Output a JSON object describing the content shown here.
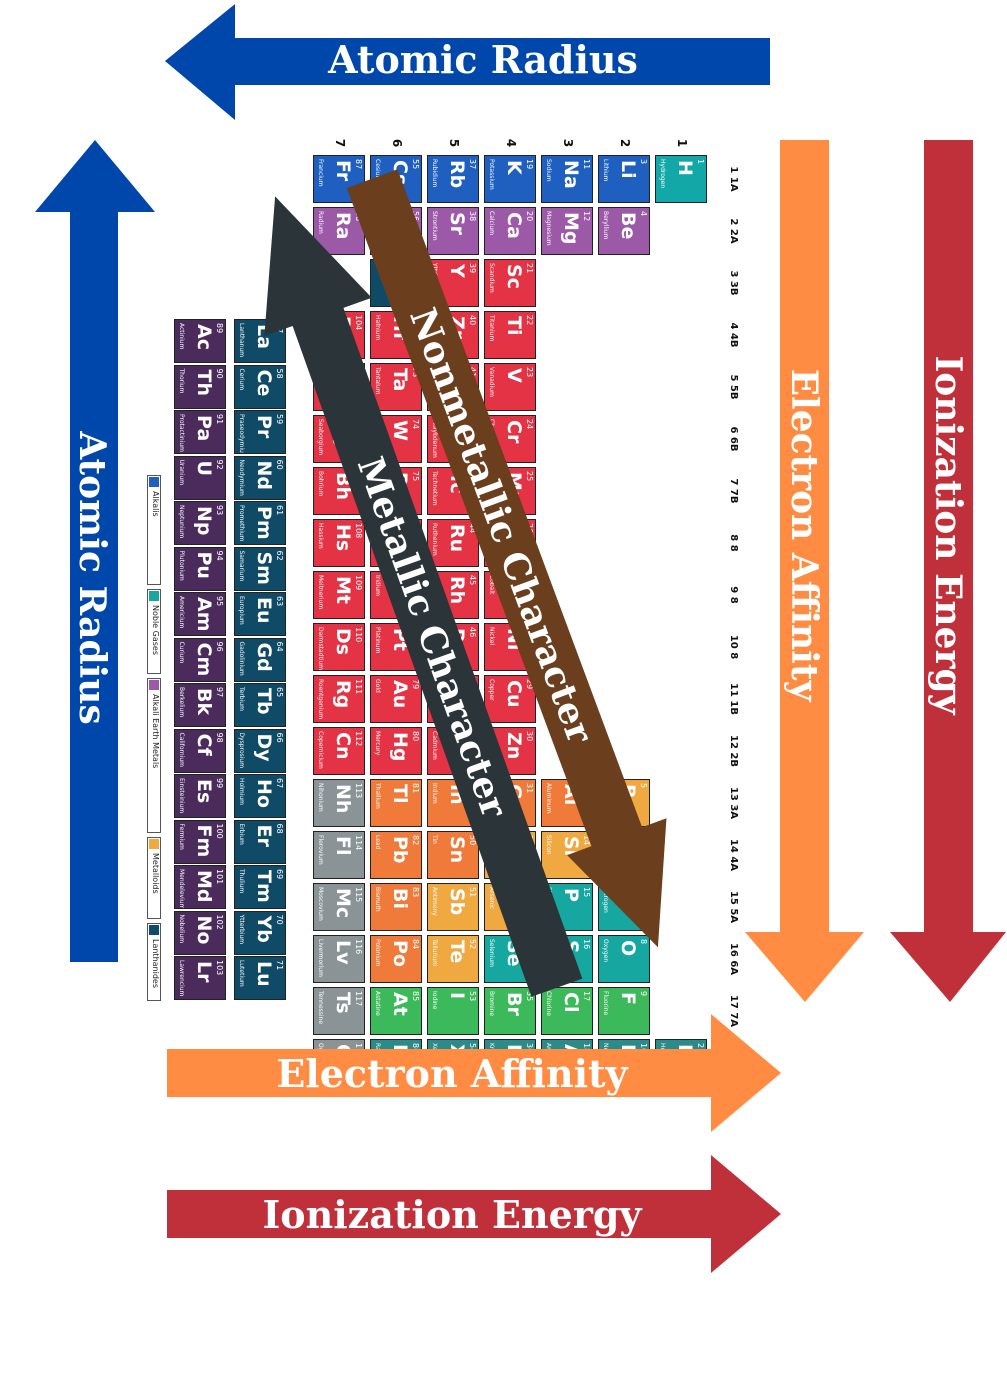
{
  "labels": {
    "atomic_radius_top": "Atomic Radius",
    "atomic_radius_left": "Atomic Radius",
    "electron_affinity_right": "Electron Affinity",
    "ionization_energy_right": "Ionization Energy",
    "electron_affinity_bottom": "Electron Affinity",
    "ionization_energy_bottom": "Ionization Energy",
    "nonmetallic_character": "Nonmetallic Character",
    "metallic_character": "Metallic Character"
  },
  "colors": {
    "atomic_radius": "#0047AB",
    "electron_affinity": "#FF8C42",
    "ionization_energy": "#C0303A",
    "nonmetallic": "#6B3E1E",
    "metallic": "#2B3438"
  },
  "table": {
    "groups": [
      "1 1A",
      "2 2A",
      "3 3B",
      "4 4B",
      "5 5B",
      "6 6B",
      "7 7B",
      "8 8",
      "9 8",
      "10 8",
      "11 1B",
      "12 2B",
      "13 3A",
      "14 4A",
      "15 5A",
      "16 6A",
      "17 7A",
      "18 8A"
    ],
    "periods": [
      "1",
      "2",
      "3",
      "4",
      "5",
      "6",
      "7"
    ],
    "lanthanide_marker": "*",
    "legend": [
      "Alkalis",
      "Noble Gases",
      "Alkali Earth Metals",
      "Metalloids",
      "Lanthanides"
    ],
    "cat_colors": {
      "alkali": "#1f5fc0",
      "alkaline": "#9b59a8",
      "transition": "#e33345",
      "post": "#f07a3a",
      "metalloid": "#f0a840",
      "nonmetal": "#16a7a0",
      "halogen": "#3cb95a",
      "noble": "#2a8c8a",
      "hydrogen": "#13a8a8",
      "unknown": "#8a9496",
      "lanth": "#0f4a66",
      "actin": "#4a2b5c"
    },
    "elements": [
      {
        "n": "1",
        "s": "H",
        "name": "Hydrogen",
        "g": 1,
        "p": 1,
        "c": "hydrogen"
      },
      {
        "n": "2",
        "s": "He",
        "name": "Helium",
        "g": 18,
        "p": 1,
        "c": "noble"
      },
      {
        "n": "3",
        "s": "Li",
        "name": "Lithium",
        "g": 1,
        "p": 2,
        "c": "alkali"
      },
      {
        "n": "4",
        "s": "Be",
        "name": "Beryllium",
        "g": 2,
        "p": 2,
        "c": "alkaline"
      },
      {
        "n": "5",
        "s": "B",
        "name": "Boron",
        "g": 13,
        "p": 2,
        "c": "metalloid"
      },
      {
        "n": "6",
        "s": "C",
        "name": "Carbon",
        "g": 14,
        "p": 2,
        "c": "nonmetal"
      },
      {
        "n": "7",
        "s": "N",
        "name": "Nitrogen",
        "g": 15,
        "p": 2,
        "c": "nonmetal"
      },
      {
        "n": "8",
        "s": "O",
        "name": "Oxygen",
        "g": 16,
        "p": 2,
        "c": "nonmetal"
      },
      {
        "n": "9",
        "s": "F",
        "name": "Fluorine",
        "g": 17,
        "p": 2,
        "c": "halogen"
      },
      {
        "n": "10",
        "s": "Ne",
        "name": "Neon",
        "g": 18,
        "p": 2,
        "c": "noble"
      },
      {
        "n": "11",
        "s": "Na",
        "name": "Sodium",
        "g": 1,
        "p": 3,
        "c": "alkali"
      },
      {
        "n": "12",
        "s": "Mg",
        "name": "Magnesium",
        "g": 2,
        "p": 3,
        "c": "alkaline"
      },
      {
        "n": "13",
        "s": "Al",
        "name": "Aluminum",
        "g": 13,
        "p": 3,
        "c": "post"
      },
      {
        "n": "14",
        "s": "Si",
        "name": "Silicon",
        "g": 14,
        "p": 3,
        "c": "metalloid"
      },
      {
        "n": "15",
        "s": "P",
        "name": "Phosphorus",
        "g": 15,
        "p": 3,
        "c": "nonmetal"
      },
      {
        "n": "16",
        "s": "S",
        "name": "Sulfur",
        "g": 16,
        "p": 3,
        "c": "nonmetal"
      },
      {
        "n": "17",
        "s": "Cl",
        "name": "Chlorine",
        "g": 17,
        "p": 3,
        "c": "halogen"
      },
      {
        "n": "18",
        "s": "Ar",
        "name": "Argon",
        "g": 18,
        "p": 3,
        "c": "noble"
      },
      {
        "n": "19",
        "s": "K",
        "name": "Potassium",
        "g": 1,
        "p": 4,
        "c": "alkali"
      },
      {
        "n": "20",
        "s": "Ca",
        "name": "Calcium",
        "g": 2,
        "p": 4,
        "c": "alkaline"
      },
      {
        "n": "21",
        "s": "Sc",
        "name": "Scandium",
        "g": 3,
        "p": 4,
        "c": "transition"
      },
      {
        "n": "22",
        "s": "Ti",
        "name": "Titanium",
        "g": 4,
        "p": 4,
        "c": "transition"
      },
      {
        "n": "23",
        "s": "V",
        "name": "Vanadium",
        "g": 5,
        "p": 4,
        "c": "transition"
      },
      {
        "n": "24",
        "s": "Cr",
        "name": "Chromium",
        "g": 6,
        "p": 4,
        "c": "transition"
      },
      {
        "n": "25",
        "s": "Mn",
        "name": "Manganese",
        "g": 7,
        "p": 4,
        "c": "transition"
      },
      {
        "n": "26",
        "s": "Fe",
        "name": "Iron",
        "g": 8,
        "p": 4,
        "c": "transition"
      },
      {
        "n": "27",
        "s": "Co",
        "name": "Cobalt",
        "g": 9,
        "p": 4,
        "c": "transition"
      },
      {
        "n": "28",
        "s": "Ni",
        "name": "Nickel",
        "g": 10,
        "p": 4,
        "c": "transition"
      },
      {
        "n": "29",
        "s": "Cu",
        "name": "Copper",
        "g": 11,
        "p": 4,
        "c": "transition"
      },
      {
        "n": "30",
        "s": "Zn",
        "name": "Zinc",
        "g": 12,
        "p": 4,
        "c": "transition"
      },
      {
        "n": "31",
        "s": "Ga",
        "name": "Gallium",
        "g": 13,
        "p": 4,
        "c": "post"
      },
      {
        "n": "32",
        "s": "Ge",
        "name": "Germanium",
        "g": 14,
        "p": 4,
        "c": "metalloid"
      },
      {
        "n": "33",
        "s": "As",
        "name": "Arsenic",
        "g": 15,
        "p": 4,
        "c": "metalloid"
      },
      {
        "n": "34",
        "s": "Se",
        "name": "Selenium",
        "g": 16,
        "p": 4,
        "c": "nonmetal"
      },
      {
        "n": "35",
        "s": "Br",
        "name": "Bromine",
        "g": 17,
        "p": 4,
        "c": "halogen"
      },
      {
        "n": "36",
        "s": "Kr",
        "name": "Krypton",
        "g": 18,
        "p": 4,
        "c": "noble"
      },
      {
        "n": "37",
        "s": "Rb",
        "name": "Rubidium",
        "g": 1,
        "p": 5,
        "c": "alkali"
      },
      {
        "n": "38",
        "s": "Sr",
        "name": "Strontium",
        "g": 2,
        "p": 5,
        "c": "alkaline"
      },
      {
        "n": "39",
        "s": "Y",
        "name": "Yttrium",
        "g": 3,
        "p": 5,
        "c": "transition"
      },
      {
        "n": "40",
        "s": "Zr",
        "name": "Zirconium",
        "g": 4,
        "p": 5,
        "c": "transition"
      },
      {
        "n": "41",
        "s": "Nb",
        "name": "Niobium",
        "g": 5,
        "p": 5,
        "c": "transition"
      },
      {
        "n": "42",
        "s": "Mo",
        "name": "Molybdenum",
        "g": 6,
        "p": 5,
        "c": "transition"
      },
      {
        "n": "43",
        "s": "Tc",
        "name": "Technetium",
        "g": 7,
        "p": 5,
        "c": "transition"
      },
      {
        "n": "44",
        "s": "Ru",
        "name": "Ruthenium",
        "g": 8,
        "p": 5,
        "c": "transition"
      },
      {
        "n": "45",
        "s": "Rh",
        "name": "Rhodium",
        "g": 9,
        "p": 5,
        "c": "transition"
      },
      {
        "n": "46",
        "s": "Pd",
        "name": "Palladium",
        "g": 10,
        "p": 5,
        "c": "transition"
      },
      {
        "n": "47",
        "s": "Ag",
        "name": "Silver",
        "g": 11,
        "p": 5,
        "c": "transition"
      },
      {
        "n": "48",
        "s": "Cd",
        "name": "Cadmium",
        "g": 12,
        "p": 5,
        "c": "transition"
      },
      {
        "n": "49",
        "s": "In",
        "name": "Indium",
        "g": 13,
        "p": 5,
        "c": "post"
      },
      {
        "n": "50",
        "s": "Sn",
        "name": "Tin",
        "g": 14,
        "p": 5,
        "c": "post"
      },
      {
        "n": "51",
        "s": "Sb",
        "name": "Antimony",
        "g": 15,
        "p": 5,
        "c": "metalloid"
      },
      {
        "n": "52",
        "s": "Te",
        "name": "Tellurium",
        "g": 16,
        "p": 5,
        "c": "metalloid"
      },
      {
        "n": "53",
        "s": "I",
        "name": "Iodine",
        "g": 17,
        "p": 5,
        "c": "halogen"
      },
      {
        "n": "54",
        "s": "Xe",
        "name": "Xenon",
        "g": 18,
        "p": 5,
        "c": "noble"
      },
      {
        "n": "55",
        "s": "Cs",
        "name": "Cesium",
        "g": 1,
        "p": 6,
        "c": "alkali"
      },
      {
        "n": "56",
        "s": "Ba",
        "name": "Barium",
        "g": 2,
        "p": 6,
        "c": "alkaline"
      },
      {
        "n": "72",
        "s": "Hf",
        "name": "Hafnium",
        "g": 4,
        "p": 6,
        "c": "transition"
      },
      {
        "n": "73",
        "s": "Ta",
        "name": "Tantalum",
        "g": 5,
        "p": 6,
        "c": "transition"
      },
      {
        "n": "74",
        "s": "W",
        "name": "Tungsten",
        "g": 6,
        "p": 6,
        "c": "transition"
      },
      {
        "n": "75",
        "s": "Re",
        "name": "Rhenium",
        "g": 7,
        "p": 6,
        "c": "transition"
      },
      {
        "n": "76",
        "s": "Os",
        "name": "Osmium",
        "g": 8,
        "p": 6,
        "c": "transition"
      },
      {
        "n": "77",
        "s": "Ir",
        "name": "Iridium",
        "g": 9,
        "p": 6,
        "c": "transition"
      },
      {
        "n": "78",
        "s": "Pt",
        "name": "Platinum",
        "g": 10,
        "p": 6,
        "c": "transition"
      },
      {
        "n": "79",
        "s": "Au",
        "name": "Gold",
        "g": 11,
        "p": 6,
        "c": "transition"
      },
      {
        "n": "80",
        "s": "Hg",
        "name": "Mercury",
        "g": 12,
        "p": 6,
        "c": "transition"
      },
      {
        "n": "81",
        "s": "Tl",
        "name": "Thallium",
        "g": 13,
        "p": 6,
        "c": "post"
      },
      {
        "n": "82",
        "s": "Pb",
        "name": "Lead",
        "g": 14,
        "p": 6,
        "c": "post"
      },
      {
        "n": "83",
        "s": "Bi",
        "name": "Bismuth",
        "g": 15,
        "p": 6,
        "c": "post"
      },
      {
        "n": "84",
        "s": "Po",
        "name": "Polonium",
        "g": 16,
        "p": 6,
        "c": "post"
      },
      {
        "n": "85",
        "s": "At",
        "name": "Astatine",
        "g": 17,
        "p": 6,
        "c": "halogen"
      },
      {
        "n": "86",
        "s": "Rn",
        "name": "Radon",
        "g": 18,
        "p": 6,
        "c": "noble"
      },
      {
        "n": "87",
        "s": "Fr",
        "name": "Francium",
        "g": 1,
        "p": 7,
        "c": "alkali"
      },
      {
        "n": "88",
        "s": "Ra",
        "name": "Radium",
        "g": 2,
        "p": 7,
        "c": "alkaline"
      },
      {
        "n": "104",
        "s": "Rf",
        "name": "Rutherfordium",
        "g": 4,
        "p": 7,
        "c": "transition"
      },
      {
        "n": "105",
        "s": "Db",
        "name": "Dubnium",
        "g": 5,
        "p": 7,
        "c": "transition"
      },
      {
        "n": "106",
        "s": "Sg",
        "name": "Seaborgium",
        "g": 6,
        "p": 7,
        "c": "transition"
      },
      {
        "n": "107",
        "s": "Bh",
        "name": "Bohrium",
        "g": 7,
        "p": 7,
        "c": "transition"
      },
      {
        "n": "108",
        "s": "Hs",
        "name": "Hassium",
        "g": 8,
        "p": 7,
        "c": "transition"
      },
      {
        "n": "109",
        "s": "Mt",
        "name": "Meitnerium",
        "g": 9,
        "p": 7,
        "c": "transition"
      },
      {
        "n": "110",
        "s": "Ds",
        "name": "Darmstadtium",
        "g": 10,
        "p": 7,
        "c": "transition"
      },
      {
        "n": "111",
        "s": "Rg",
        "name": "Roentgenium",
        "g": 11,
        "p": 7,
        "c": "transition"
      },
      {
        "n": "112",
        "s": "Cn",
        "name": "Copernicium",
        "g": 12,
        "p": 7,
        "c": "transition"
      },
      {
        "n": "113",
        "s": "Nh",
        "name": "Nihonium",
        "g": 13,
        "p": 7,
        "c": "unknown"
      },
      {
        "n": "114",
        "s": "Fl",
        "name": "Flerovium",
        "g": 14,
        "p": 7,
        "c": "unknown"
      },
      {
        "n": "115",
        "s": "Mc",
        "name": "Moscovium",
        "g": 15,
        "p": 7,
        "c": "unknown"
      },
      {
        "n": "116",
        "s": "Lv",
        "name": "Livermorium",
        "g": 16,
        "p": 7,
        "c": "unknown"
      },
      {
        "n": "117",
        "s": "Ts",
        "name": "Tennessine",
        "g": 17,
        "p": 7,
        "c": "unknown"
      },
      {
        "n": "118",
        "s": "Og",
        "name": "Oganesson",
        "g": 18,
        "p": 7,
        "c": "unknown"
      }
    ],
    "lanthanides": [
      {
        "n": "57",
        "s": "La",
        "name": "Lanthanum"
      },
      {
        "n": "58",
        "s": "Ce",
        "name": "Cerium"
      },
      {
        "n": "59",
        "s": "Pr",
        "name": "Praseodymium"
      },
      {
        "n": "60",
        "s": "Nd",
        "name": "Neodymium"
      },
      {
        "n": "61",
        "s": "Pm",
        "name": "Promethium"
      },
      {
        "n": "62",
        "s": "Sm",
        "name": "Samarium"
      },
      {
        "n": "63",
        "s": "Eu",
        "name": "Europium"
      },
      {
        "n": "64",
        "s": "Gd",
        "name": "Gadolinium"
      },
      {
        "n": "65",
        "s": "Tb",
        "name": "Terbium"
      },
      {
        "n": "66",
        "s": "Dy",
        "name": "Dysprosium"
      },
      {
        "n": "67",
        "s": "Ho",
        "name": "Holmium"
      },
      {
        "n": "68",
        "s": "Er",
        "name": "Erbium"
      },
      {
        "n": "69",
        "s": "Tm",
        "name": "Thulium"
      },
      {
        "n": "70",
        "s": "Yb",
        "name": "Ytterbium"
      },
      {
        "n": "71",
        "s": "Lu",
        "name": "Lutetium"
      }
    ],
    "actinides": [
      {
        "n": "89",
        "s": "Ac",
        "name": "Actinium"
      },
      {
        "n": "90",
        "s": "Th",
        "name": "Thorium"
      },
      {
        "n": "91",
        "s": "Pa",
        "name": "Protactinium"
      },
      {
        "n": "92",
        "s": "U",
        "name": "Uranium"
      },
      {
        "n": "93",
        "s": "Np",
        "name": "Neptunium"
      },
      {
        "n": "94",
        "s": "Pu",
        "name": "Plutonium"
      },
      {
        "n": "95",
        "s": "Am",
        "name": "Americium"
      },
      {
        "n": "96",
        "s": "Cm",
        "name": "Curium"
      },
      {
        "n": "97",
        "s": "Bk",
        "name": "Berkelium"
      },
      {
        "n": "98",
        "s": "Cf",
        "name": "Californium"
      },
      {
        "n": "99",
        "s": "Es",
        "name": "Einsteinium"
      },
      {
        "n": "100",
        "s": "Fm",
        "name": "Fermium"
      },
      {
        "n": "101",
        "s": "Md",
        "name": "Mendelevium"
      },
      {
        "n": "102",
        "s": "No",
        "name": "Nobelium"
      },
      {
        "n": "103",
        "s": "Lr",
        "name": "Lawrencium"
      }
    ]
  }
}
